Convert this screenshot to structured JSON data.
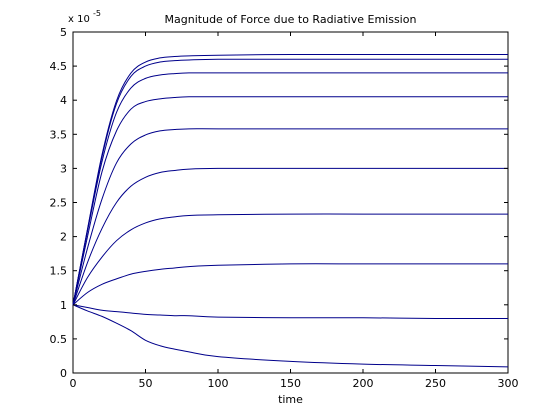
{
  "chart_data": {
    "type": "line",
    "title": "Magnitude of Force due to Radiative Emission",
    "xlabel": "time",
    "ylabel": "",
    "xlim": [
      0,
      300
    ],
    "ylim": [
      0,
      5
    ],
    "y_multiplier": {
      "base": "x 10",
      "exponent": "-5"
    },
    "xticks": [
      0,
      50,
      100,
      150,
      200,
      250,
      300
    ],
    "yticks": [
      0,
      0.5,
      1,
      1.5,
      2,
      2.5,
      3,
      3.5,
      4,
      4.5,
      5
    ],
    "xtick_labels": [
      "0",
      "50",
      "100",
      "150",
      "200",
      "250",
      "300"
    ],
    "ytick_labels": [
      "0",
      "0.5",
      "1",
      "1.5",
      "2",
      "2.5",
      "3",
      "3.5",
      "4",
      "4.5",
      "5"
    ],
    "grid": false,
    "line_color": "#00008B",
    "x": [
      0,
      10,
      20,
      30,
      40,
      50,
      60,
      70,
      80,
      100,
      150,
      200,
      250,
      300
    ],
    "series": [
      {
        "values": [
          1.0,
          0.91,
          0.83,
          0.73,
          0.62,
          0.48,
          0.4,
          0.35,
          0.31,
          0.24,
          0.17,
          0.13,
          0.11,
          0.09
        ]
      },
      {
        "values": [
          1.0,
          0.96,
          0.92,
          0.9,
          0.88,
          0.86,
          0.85,
          0.84,
          0.84,
          0.82,
          0.81,
          0.81,
          0.8,
          0.8
        ]
      },
      {
        "values": [
          1.0,
          1.18,
          1.3,
          1.38,
          1.45,
          1.49,
          1.52,
          1.54,
          1.56,
          1.58,
          1.6,
          1.6,
          1.6,
          1.6
        ]
      },
      {
        "values": [
          1.0,
          1.4,
          1.7,
          1.94,
          2.1,
          2.2,
          2.26,
          2.29,
          2.31,
          2.32,
          2.33,
          2.33,
          2.33,
          2.33
        ]
      },
      {
        "values": [
          1.0,
          1.62,
          2.12,
          2.5,
          2.74,
          2.87,
          2.94,
          2.97,
          2.99,
          3.0,
          3.0,
          3.0,
          3.0,
          3.0
        ]
      },
      {
        "values": [
          1.0,
          1.83,
          2.55,
          3.08,
          3.36,
          3.49,
          3.55,
          3.57,
          3.58,
          3.58,
          3.58,
          3.58,
          3.58,
          3.58
        ]
      },
      {
        "values": [
          1.0,
          2.0,
          2.95,
          3.55,
          3.87,
          3.98,
          4.02,
          4.04,
          4.05,
          4.05,
          4.05,
          4.05,
          4.05,
          4.05
        ]
      },
      {
        "values": [
          1.0,
          2.08,
          3.1,
          3.82,
          4.18,
          4.32,
          4.37,
          4.39,
          4.4,
          4.4,
          4.4,
          4.4,
          4.4,
          4.4
        ]
      },
      {
        "values": [
          1.0,
          2.1,
          3.17,
          3.95,
          4.35,
          4.5,
          4.56,
          4.58,
          4.59,
          4.6,
          4.6,
          4.6,
          4.6,
          4.6
        ]
      },
      {
        "values": [
          1.0,
          2.11,
          3.2,
          3.99,
          4.4,
          4.56,
          4.62,
          4.64,
          4.65,
          4.66,
          4.67,
          4.67,
          4.67,
          4.67
        ]
      }
    ]
  }
}
